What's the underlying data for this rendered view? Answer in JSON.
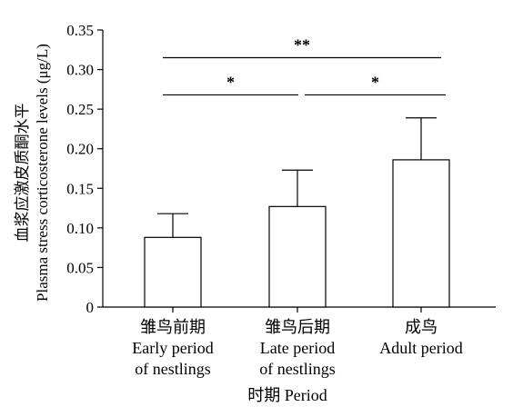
{
  "chart_data": {
    "type": "bar",
    "categories": [
      [
        "雏鸟前期",
        "Early period",
        "of nestlings"
      ],
      [
        "雏鸟后期",
        "Late period",
        "of nestlings"
      ],
      [
        "成鸟",
        "Adult period"
      ]
    ],
    "values": [
      0.088,
      0.127,
      0.186
    ],
    "errors": [
      0.03,
      0.046,
      0.053
    ],
    "ylim": [
      0,
      0.35
    ],
    "yticks": [
      "0",
      "0.05",
      "0.10",
      "0.15",
      "0.20",
      "0.25",
      "0.30",
      "0.35"
    ],
    "ylabel_cn": "血浆应激皮质酮水平",
    "ylabel_en": "Plasma stress corticosterone levels (μg/L)",
    "xlabel": "时期 Period",
    "significance": [
      {
        "from": 0,
        "to": 2,
        "label": "**",
        "y": 0.315
      },
      {
        "from": 0,
        "to": 1,
        "label": "*",
        "y": 0.268
      },
      {
        "from": 1,
        "to": 2,
        "label": "*",
        "y": 0.268
      }
    ],
    "grid": false
  }
}
